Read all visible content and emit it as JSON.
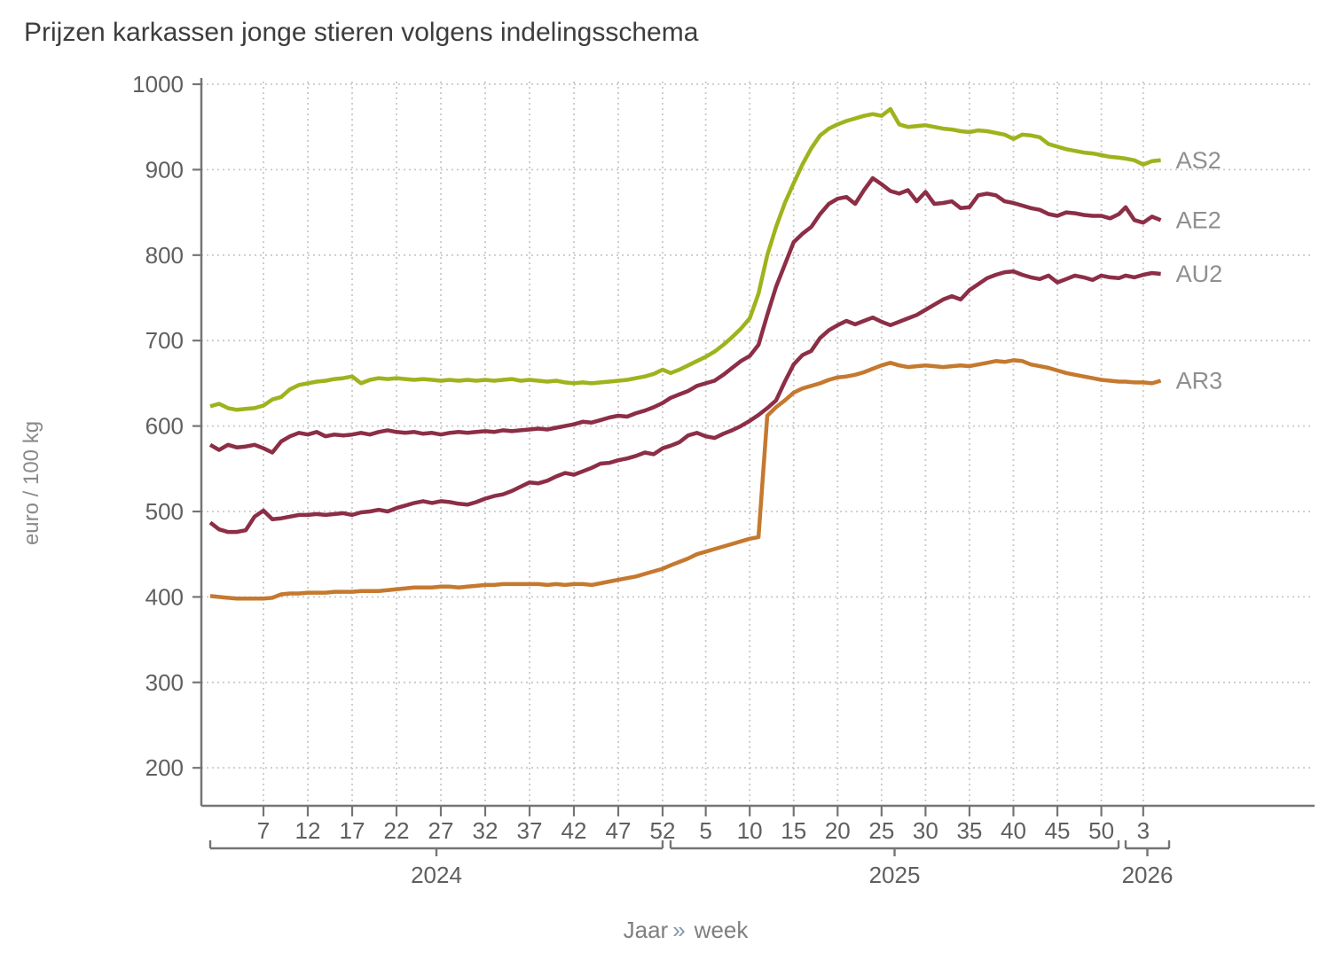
{
  "title": "Prijzen karkassen jonge stieren volgens indelingsschema",
  "caption": {
    "year_word": "Jaar",
    "separator": "»",
    "week_word": "week"
  },
  "colors": {
    "as2_green": "#9eb31c",
    "maroon": "#8c2e46",
    "ar3_orange": "#c5792f",
    "grid": "#c9c9c9",
    "axis": "#757575",
    "tick_label": "#5f5f5f",
    "series_label": "#8f8f8f",
    "title_text": "#3d3d3d",
    "background": "#ffffff"
  },
  "chart_data": {
    "type": "line",
    "title": "Prijzen karkassen jonge stieren volgens indelingsschema",
    "ylabel": "euro / 100 kg",
    "xlabel": "Jaar » week",
    "unit": "euro / 100 kg",
    "grid": "dotted, horizontal and vertical",
    "legend_position": "right of line ends",
    "y_axis": {
      "ticks": [
        200,
        300,
        400,
        500,
        600,
        700,
        800,
        900,
        1000
      ],
      "range": [
        155,
        1005
      ]
    },
    "x_axis": {
      "panels": [
        {
          "year": "2024",
          "weeks": 52,
          "tick_weeks": [
            7,
            12,
            17,
            22,
            27,
            32,
            37,
            42,
            47,
            52
          ]
        },
        {
          "year": "2025",
          "weeks": 52,
          "tick_weeks": [
            5,
            10,
            15,
            20,
            25,
            30,
            35,
            40,
            45,
            50
          ]
        },
        {
          "year": "2026",
          "weeks": 5,
          "tick_weeks": [
            3
          ]
        }
      ]
    },
    "series": [
      {
        "name": "AS2",
        "color": "#9eb31c",
        "values": [
          623,
          626,
          621,
          619,
          620,
          621,
          624,
          631,
          634,
          643,
          648,
          650,
          652,
          653,
          655,
          656,
          658,
          650,
          654,
          656,
          655,
          656,
          655,
          654,
          655,
          654,
          653,
          654,
          653,
          654,
          653,
          654,
          653,
          654,
          655,
          653,
          654,
          653,
          652,
          653,
          651,
          650,
          651,
          650,
          651,
          652,
          653,
          654,
          656,
          658,
          661,
          666,
          662,
          666,
          671,
          676,
          681,
          687,
          695,
          704,
          714,
          726,
          755,
          800,
          833,
          861,
          884,
          906,
          925,
          940,
          948,
          953,
          957,
          960,
          963,
          965,
          963,
          971,
          953,
          950,
          951,
          952,
          950,
          948,
          947,
          945,
          944,
          946,
          945,
          943,
          941,
          936,
          941,
          940,
          938,
          930,
          927,
          924,
          922,
          920,
          919,
          917,
          915,
          914,
          913,
          911,
          906,
          910,
          911
        ]
      },
      {
        "name": "AE2",
        "color": "#8c2e46",
        "values": [
          578,
          572,
          578,
          575,
          576,
          578,
          574,
          569,
          582,
          588,
          592,
          590,
          593,
          588,
          590,
          589,
          590,
          592,
          590,
          593,
          595,
          593,
          592,
          593,
          591,
          592,
          590,
          592,
          593,
          592,
          593,
          594,
          593,
          595,
          594,
          595,
          596,
          597,
          596,
          598,
          600,
          602,
          605,
          604,
          607,
          610,
          612,
          611,
          615,
          618,
          622,
          627,
          633,
          637,
          641,
          647,
          650,
          653,
          660,
          668,
          676,
          682,
          695,
          730,
          763,
          789,
          815,
          825,
          833,
          848,
          860,
          866,
          868,
          860,
          876,
          890,
          883,
          875,
          872,
          876,
          863,
          874,
          860,
          861,
          863,
          855,
          856,
          870,
          872,
          870,
          863,
          861,
          858,
          855,
          853,
          848,
          846,
          850,
          849,
          847,
          846,
          846,
          843,
          848,
          856,
          841,
          838,
          845,
          841
        ]
      },
      {
        "name": "AU2",
        "color": "#8c2e46",
        "values": [
          487,
          479,
          476,
          476,
          478,
          494,
          501,
          491,
          492,
          494,
          496,
          496,
          497,
          496,
          497,
          498,
          496,
          499,
          500,
          502,
          500,
          504,
          507,
          510,
          512,
          510,
          512,
          511,
          509,
          508,
          511,
          515,
          518,
          520,
          524,
          529,
          534,
          533,
          536,
          541,
          545,
          543,
          547,
          551,
          556,
          557,
          560,
          562,
          565,
          569,
          567,
          574,
          577,
          581,
          589,
          592,
          588,
          586,
          591,
          595,
          600,
          606,
          613,
          621,
          630,
          652,
          672,
          683,
          688,
          703,
          712,
          718,
          723,
          719,
          723,
          727,
          722,
          718,
          722,
          726,
          730,
          736,
          742,
          748,
          752,
          748,
          759,
          766,
          773,
          777,
          780,
          781,
          777,
          774,
          772,
          776,
          768,
          772,
          776,
          774,
          771,
          776,
          774,
          773,
          776,
          774,
          777,
          779,
          778
        ]
      },
      {
        "name": "AR3",
        "color": "#c5792f",
        "values": [
          401,
          400,
          399,
          398,
          398,
          398,
          398,
          399,
          403,
          404,
          404,
          405,
          405,
          405,
          406,
          406,
          406,
          407,
          407,
          407,
          408,
          409,
          410,
          411,
          411,
          411,
          412,
          412,
          411,
          412,
          413,
          414,
          414,
          415,
          415,
          415,
          415,
          415,
          414,
          415,
          414,
          415,
          415,
          414,
          416,
          418,
          420,
          422,
          424,
          427,
          430,
          433,
          437,
          441,
          445,
          450,
          453,
          456,
          459,
          462,
          465,
          468,
          470,
          612,
          622,
          630,
          639,
          644,
          647,
          650,
          654,
          657,
          658,
          660,
          663,
          667,
          671,
          674,
          671,
          669,
          670,
          671,
          670,
          669,
          670,
          671,
          670,
          672,
          674,
          676,
          675,
          677,
          676,
          672,
          670,
          668,
          665,
          662,
          660,
          658,
          656,
          654,
          653,
          652,
          652,
          651,
          651,
          650,
          653
        ]
      }
    ]
  }
}
